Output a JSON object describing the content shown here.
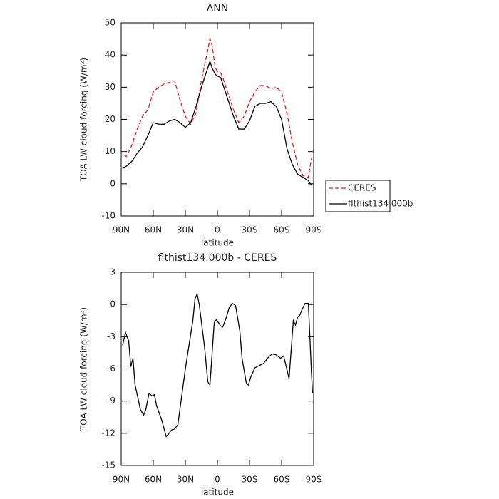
{
  "chart_data": [
    {
      "type": "line",
      "title": "ANN",
      "xlabel": "latitude",
      "ylabel": "TOA LW cloud forcing (W/m²)",
      "x": [
        88,
        85,
        80,
        75,
        70,
        65,
        60,
        55,
        50,
        45,
        40,
        35,
        30,
        25,
        20,
        15,
        10,
        7,
        5,
        2,
        0,
        -3,
        -5,
        -10,
        -15,
        -20,
        -25,
        -30,
        -35,
        -40,
        -45,
        -50,
        -55,
        -60,
        -65,
        -70,
        -75,
        -80,
        -85,
        -88
      ],
      "series": [
        {
          "name": "CERES",
          "color": "#e41a1c",
          "dashed": true,
          "values": [
            9,
            8.5,
            12,
            17,
            21,
            23,
            28.5,
            30,
            31,
            31.5,
            32,
            26,
            21,
            18.5,
            22,
            32,
            40,
            45,
            43,
            36,
            35,
            34.5,
            33,
            28,
            23,
            19,
            21,
            25.5,
            28.5,
            30.5,
            30.5,
            29.5,
            30,
            28.5,
            22,
            13,
            6,
            2.5,
            2,
            8
          ]
        },
        {
          "name": "flthist134.000b",
          "color": "#000000",
          "dashed": false,
          "values": [
            5,
            5.5,
            7,
            9.5,
            11.5,
            15,
            19,
            18.5,
            18.5,
            19.5,
            20,
            19,
            17.5,
            19,
            24,
            30,
            35,
            38,
            36,
            34,
            33.5,
            33,
            31,
            26,
            21,
            17,
            17,
            19.5,
            24,
            25,
            25,
            25.5,
            24,
            20,
            11,
            6,
            3,
            2,
            1,
            -0.5
          ]
        }
      ],
      "xlim": [
        90,
        -90
      ],
      "xticks": [
        {
          "value": 90,
          "label": "90N"
        },
        {
          "value": 60,
          "label": "60N"
        },
        {
          "value": 30,
          "label": "30N"
        },
        0,
        {
          "value": -30,
          "label": "30S"
        },
        {
          "value": -60,
          "label": "60S"
        },
        {
          "value": -90,
          "label": "90S"
        }
      ],
      "ylim": [
        -10,
        50
      ],
      "yticks": [
        -10,
        0,
        10,
        20,
        30,
        40,
        50
      ],
      "legend_position": "right"
    },
    {
      "type": "line",
      "title": "flthist134.000b - CERES",
      "xlabel": "latitude",
      "ylabel": "TOA LW cloud forcing (W/m²)",
      "x": [
        88.7,
        86,
        83,
        81,
        79,
        77,
        72,
        69,
        67,
        64,
        61,
        59,
        57,
        52,
        48,
        46,
        43,
        40,
        37,
        30,
        23,
        21,
        19,
        17,
        12,
        9,
        7,
        3,
        1,
        -3,
        -5,
        -8,
        -11,
        -14,
        -17,
        -21,
        -23,
        -27,
        -29,
        -31,
        -35,
        -39,
        -43,
        -47,
        -51,
        -55,
        -59,
        -62,
        -67,
        -71,
        -73,
        -75,
        -77,
        -79,
        -82,
        -85,
        -86,
        -88,
        -89
      ],
      "series": [
        {
          "color": "#000000",
          "dashed": false,
          "values": [
            -3.8,
            -2.6,
            -3.4,
            -5.8,
            -5,
            -7.5,
            -9.8,
            -10.3,
            -9.8,
            -8.3,
            -8.5,
            -8.4,
            -9.4,
            -10.8,
            -12.3,
            -12.1,
            -11.7,
            -11.6,
            -11.2,
            -6,
            -1.5,
            0.5,
            1,
            0,
            -4,
            -7.2,
            -7.5,
            -1.7,
            -1.4,
            -2,
            -2.1,
            -1.3,
            -0.3,
            0.1,
            -0.1,
            -2.5,
            -5,
            -7.3,
            -7.5,
            -6.8,
            -5.9,
            -5.7,
            -5.5,
            -5,
            -4.6,
            -4.7,
            -5,
            -4.8,
            -6.9,
            -1.5,
            -1.9,
            -1.2,
            -1,
            -0.5,
            0.1,
            0.1,
            -2,
            -6.5,
            -8.3
          ]
        }
      ],
      "xlim": [
        90,
        -90
      ],
      "xticks": [
        {
          "value": 90,
          "label": "90N"
        },
        {
          "value": 60,
          "label": "60N"
        },
        {
          "value": 30,
          "label": "30N"
        },
        0,
        {
          "value": -30,
          "label": "30S"
        },
        {
          "value": -60,
          "label": "60S"
        },
        {
          "value": -90,
          "label": "90S"
        }
      ],
      "ylim": [
        -15,
        3
      ],
      "yticks": [
        -15,
        -12,
        -9,
        -6,
        -3,
        0,
        3
      ]
    }
  ]
}
